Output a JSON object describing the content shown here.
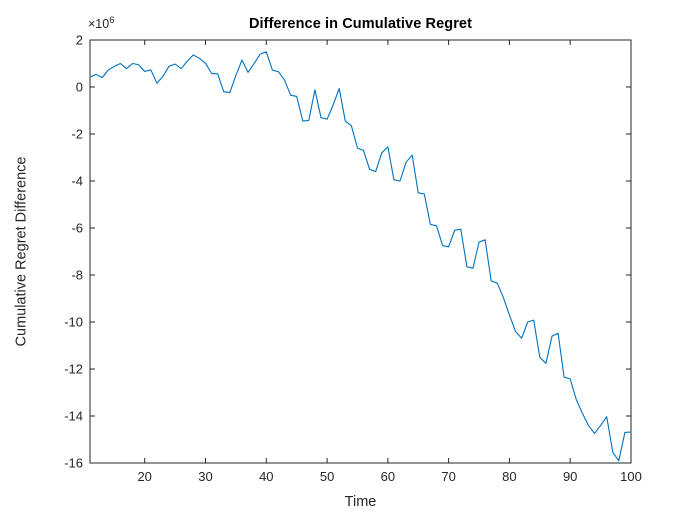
{
  "chart_data": {
    "type": "line",
    "title": "Difference in Cumulative Regret",
    "xlabel": "Time",
    "ylabel": "Cumulative Regret Difference",
    "y_exponent_base": "×10",
    "y_exponent_power": "6",
    "y_scale_exponent": 6,
    "xlim": [
      11,
      100
    ],
    "ylim": [
      -16,
      2
    ],
    "xticks": [
      20,
      30,
      40,
      50,
      60,
      70,
      80,
      90,
      100
    ],
    "yticks": [
      2,
      0,
      -2,
      -4,
      -6,
      -8,
      -10,
      -12,
      -14,
      -16
    ],
    "grid": false,
    "legend": null,
    "colors": {
      "line": "#0072BD",
      "axis": "#262626",
      "title": "#000000",
      "background": "#ffffff"
    },
    "x": [
      11,
      12,
      13,
      14,
      15,
      16,
      17,
      18,
      19,
      20,
      21,
      22,
      23,
      24,
      25,
      26,
      27,
      28,
      29,
      30,
      31,
      32,
      33,
      34,
      35,
      36,
      37,
      38,
      39,
      40,
      41,
      42,
      43,
      44,
      45,
      46,
      47,
      48,
      49,
      50,
      51,
      52,
      53,
      54,
      55,
      56,
      57,
      58,
      59,
      60,
      61,
      62,
      63,
      64,
      65,
      66,
      67,
      68,
      69,
      70,
      71,
      72,
      73,
      74,
      75,
      76,
      77,
      78,
      79,
      80,
      81,
      82,
      83,
      84,
      85,
      86,
      87,
      88,
      89,
      90,
      91,
      92,
      93,
      94,
      95,
      96,
      97,
      98,
      99,
      100
    ],
    "y": [
      0.42,
      0.54,
      0.4,
      0.72,
      0.88,
      1.0,
      0.78,
      1.0,
      0.95,
      0.66,
      0.73,
      0.16,
      0.45,
      0.88,
      0.98,
      0.78,
      1.1,
      1.36,
      1.22,
      1.01,
      0.58,
      0.56,
      -0.2,
      -0.24,
      0.5,
      1.15,
      0.62,
      1.0,
      1.4,
      1.5,
      0.72,
      0.65,
      0.3,
      -0.35,
      -0.4,
      -1.45,
      -1.42,
      -0.12,
      -1.3,
      -1.37,
      -0.77,
      -0.06,
      -1.45,
      -1.65,
      -2.6,
      -2.7,
      -3.5,
      -3.6,
      -2.8,
      -2.55,
      -3.95,
      -4.0,
      -3.2,
      -2.9,
      -4.5,
      -4.55,
      -5.85,
      -5.9,
      -6.75,
      -6.8,
      -6.1,
      -6.05,
      -7.65,
      -7.71,
      -6.6,
      -6.5,
      -8.25,
      -8.35,
      -8.95,
      -9.7,
      -10.4,
      -10.69,
      -10.0,
      -9.92,
      -11.5,
      -11.76,
      -10.6,
      -10.48,
      -12.35,
      -12.42,
      -13.3,
      -13.88,
      -14.4,
      -14.74,
      -14.4,
      -14.03,
      -15.55,
      -15.9,
      -14.7,
      -14.68
    ]
  }
}
